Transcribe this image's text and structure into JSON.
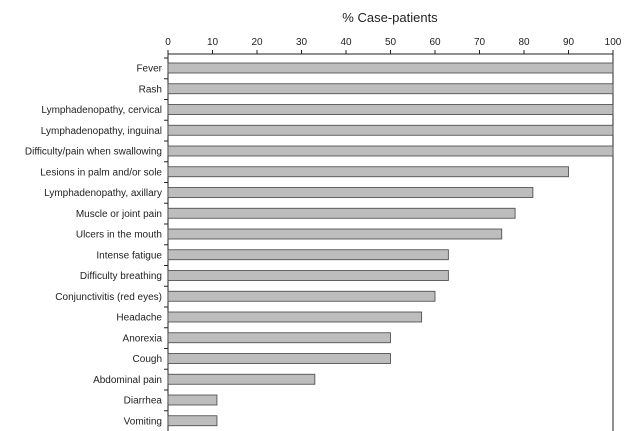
{
  "chart_data": {
    "type": "bar",
    "orientation": "horizontal",
    "xlabel": "% Case-patients",
    "xlim": [
      0,
      100
    ],
    "xticks": [
      0,
      10,
      20,
      30,
      40,
      50,
      60,
      70,
      80,
      90,
      100
    ],
    "x_axis_position": "top",
    "grid": false,
    "categories": [
      "Fever",
      "Rash",
      "Lymphadenopathy, cervical",
      "Lymphadenopathy, inguinal",
      "Difficulty/pain when swallowing",
      "Lesions in palm and/or sole",
      "Lymphadenopathy, axillary",
      "Muscle or joint pain",
      "Ulcers in the mouth",
      "Intense fatigue",
      "Difficulty breathing",
      "Conjunctivitis (red eyes)",
      "Headache",
      "Anorexia",
      "Cough",
      "Abdominal pain",
      "Diarrhea",
      "Vomiting"
    ],
    "values": [
      100,
      100,
      100,
      100,
      100,
      90,
      82,
      78,
      75,
      63,
      63,
      60,
      57,
      50,
      50,
      33,
      11,
      11
    ],
    "colors": {
      "bar_fill": "#bdbdbd",
      "bar_stroke": "#444444",
      "axis": "#222222"
    }
  }
}
